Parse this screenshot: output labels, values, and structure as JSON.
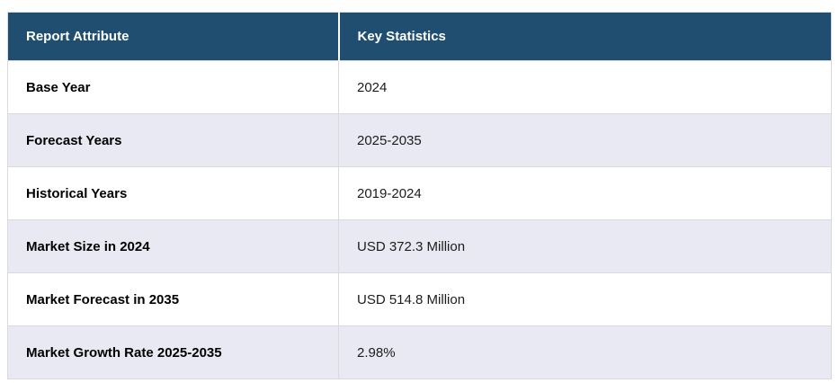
{
  "table": {
    "columns": [
      {
        "label": "Report Attribute"
      },
      {
        "label": "Key Statistics"
      }
    ],
    "rows": [
      {
        "attribute": "Base Year",
        "value": "2024"
      },
      {
        "attribute": "Forecast Years",
        "value": "2025-2035"
      },
      {
        "attribute": "Historical Years",
        "value": "2019-2024"
      },
      {
        "attribute": "Market Size in 2024",
        "value": "USD 372.3 Million"
      },
      {
        "attribute": "Market Forecast in 2035",
        "value": "USD 514.8 Million"
      },
      {
        "attribute": "Market Growth Rate 2025-2035",
        "value": "2.98%"
      }
    ],
    "colors": {
      "header_bg": "#1f4e70",
      "header_text": "#ffffff",
      "row_bg": "#ffffff",
      "row_alt_bg": "#e8e9f2",
      "border": "#d9d9de",
      "value_text": "#1c1c1c",
      "attribute_text": "#000000"
    }
  }
}
